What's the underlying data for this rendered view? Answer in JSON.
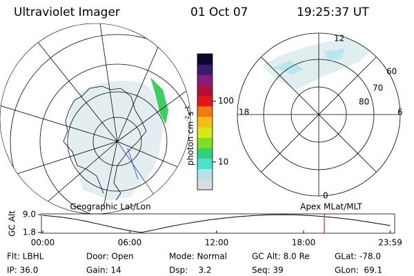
{
  "header": {
    "title": "Ultraviolet Imager",
    "date": "01 Oct 07",
    "time": "19:25:37 UT"
  },
  "colorbar": {
    "label": [
      "photon cm",
      "-2",
      "s",
      "-1"
    ],
    "log": true,
    "lim": [
      3.5,
      600
    ],
    "ticks": [
      10,
      100
    ],
    "colors": [
      "#d9dde0",
      "#b4e4ea",
      "#4fe0d0",
      "#2ed37a",
      "#7ee020",
      "#d8e814",
      "#f0c010",
      "#f07a10",
      "#e01818",
      "#b0103a",
      "#8a1a80",
      "#3a1a70",
      "#0a0a30"
    ]
  },
  "polar": {
    "ring_labels": [
      "60",
      "70",
      "80"
    ],
    "mlt_labels": [
      "12",
      "18",
      "6",
      "0"
    ]
  },
  "altitude": {
    "labels": [
      "Geographic Lat/Lon",
      "Apex MLat/MLT"
    ],
    "ylabel": "GC Alt",
    "ylim": [
      1.5,
      9.3
    ],
    "yticks": [
      {
        "value": 9.0,
        "label": "9.0"
      },
      {
        "value": 1.8,
        "label": "1.8"
      }
    ],
    "xlim": [
      0,
      24
    ],
    "xticks": [
      {
        "value": 0,
        "label": "00:00"
      },
      {
        "value": 6,
        "label": "06:00"
      },
      {
        "value": 12,
        "label": "12:00"
      },
      {
        "value": 18,
        "label": "18:00"
      },
      {
        "value": 23.98,
        "label": "23:59"
      }
    ],
    "x": [
      0,
      1,
      2,
      3,
      4,
      5,
      6,
      6.8,
      7.5,
      8.5,
      9.5,
      10.5,
      11.5,
      12.5,
      13.5,
      14.5,
      15.5,
      16.5,
      17.5,
      18.5,
      19.5,
      20.5,
      21.5,
      22.5,
      23.98
    ],
    "values": [
      8.7,
      8.2,
      7.4,
      6.3,
      5.0,
      3.7,
      2.5,
      1.8,
      2.6,
      3.9,
      5.0,
      6.0,
      6.9,
      7.6,
      8.2,
      8.6,
      8.9,
      9.0,
      8.9,
      8.6,
      8.2,
      7.6,
      6.9,
      6.0,
      4.6
    ],
    "current_time": 19.43,
    "current_color": "#e02020",
    "line_color": "#000000"
  },
  "info": [
    [
      "Flt: LBHL",
      "Door: Open",
      "Mode: Normal",
      "GC Alt: 8.0 Re",
      "GLat: -78.0"
    ],
    [
      "IP: 36.0",
      "Gain: 14",
      "Dsp:    3.2",
      "Seq: 39",
      "GLon:  69.1"
    ]
  ]
}
